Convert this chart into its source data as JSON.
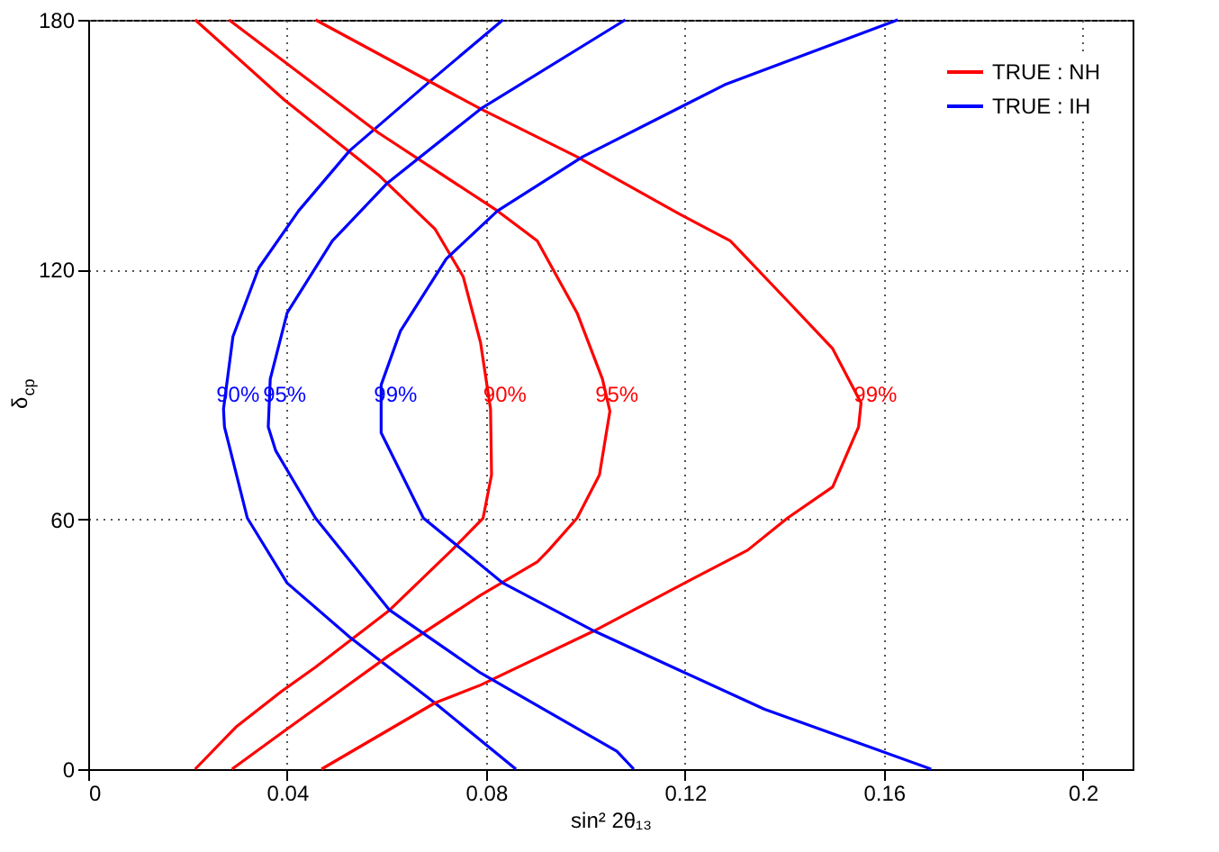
{
  "chart_data": {
    "type": "line",
    "xlabel": "sin² 2θ₁₃",
    "ylabel": "δ$_{cp}$",
    "xlim": [
      0,
      0.21
    ],
    "xticks": [
      0,
      0.04,
      0.08,
      0.12,
      0.16,
      0.2
    ],
    "ylim": [
      0,
      180
    ],
    "yticks": [
      0,
      60,
      120,
      180
    ],
    "grid": true,
    "legend": "top right",
    "marker": "none",
    "line_style": "solid",
    "series": [
      {
        "name": "TRUE : NH",
        "color": "#ff0000",
        "x": [
          0.0215,
          0.0394,
          0.0583,
          0.0697,
          0.0754,
          0.0789,
          0.0809,
          0.0811,
          0.0794,
          0.0731,
          0.0606,
          0.0457,
          0.0389,
          0.0297,
          0.0215
        ],
        "values": [
          180,
          160.8,
          142.8,
          129.8,
          118.3,
          102.4,
          86.5,
          70.7,
          60.3,
          52.6,
          38.2,
          24.5,
          18.7,
          10.1,
          0
        ]
      },
      {
        "color": "#ff0000",
        "x": [
          0.0283,
          0.0583,
          0.0823,
          0.0903,
          0.0983,
          0.1034,
          0.1049,
          0.1028,
          0.0983,
          0.0926,
          0.0903,
          0.0789,
          0.0606,
          0.0389,
          0.0289
        ],
        "values": [
          180,
          152.9,
          134.1,
          126.9,
          109.6,
          93.7,
          86,
          70.7,
          60.3,
          52.6,
          49.8,
          41.8,
          27.4,
          8.7,
          0
        ]
      },
      {
        "color": "#ff0000",
        "x": [
          0.0457,
          0.0789,
          0.0983,
          0.1188,
          0.1291,
          0.1406,
          0.1497,
          0.1554,
          0.1549,
          0.1497,
          0.1406,
          0.1326,
          0.1188,
          0.1017,
          0.0789,
          0.0697,
          0.0469
        ],
        "values": [
          180,
          158.6,
          147.1,
          133.4,
          126.9,
          112.5,
          101,
          88,
          82.2,
          67.8,
          60.3,
          52.6,
          44,
          33.2,
          20.2,
          15.9,
          0
        ]
      },
      {
        "name": "TRUE : IH",
        "color": "#0000ff",
        "x": [
          0.0834,
          0.0686,
          0.0526,
          0.0423,
          0.0343,
          0.0291,
          0.0272,
          0.0274,
          0.032,
          0.04,
          0.0526,
          0.0697,
          0.086
        ],
        "values": [
          180,
          165.1,
          148.6,
          134.1,
          120.4,
          103.9,
          86.5,
          82.2,
          60.3,
          44.7,
          31.7,
          15.9,
          0
        ]
      },
      {
        "color": "#0000ff",
        "x": [
          0.108,
          0.0789,
          0.06,
          0.0491,
          0.04,
          0.0366,
          0.0362,
          0.0377,
          0.0457,
          0.0606,
          0.0789,
          0.1063,
          0.1097
        ],
        "values": [
          180,
          158.6,
          140.6,
          126.9,
          109.6,
          93.7,
          82.2,
          76.5,
          60.3,
          38.2,
          23.1,
          4.3,
          0
        ]
      },
      {
        "color": "#0000ff",
        "x": [
          0.1628,
          0.128,
          0.0994,
          0.0823,
          0.072,
          0.0628,
          0.0589,
          0.0589,
          0.0674,
          0.0834,
          0.1017,
          0.1188,
          0.136,
          0.1577,
          0.1695
        ],
        "values": [
          180,
          164.4,
          147.1,
          134.1,
          122.6,
          105.3,
          92.3,
          80.8,
          60.3,
          44.7,
          33.2,
          23.8,
          14.4,
          5.1,
          0
        ]
      }
    ],
    "annotations": [
      "90%",
      "95%",
      "99%",
      "90%",
      "95%",
      "99%"
    ]
  }
}
